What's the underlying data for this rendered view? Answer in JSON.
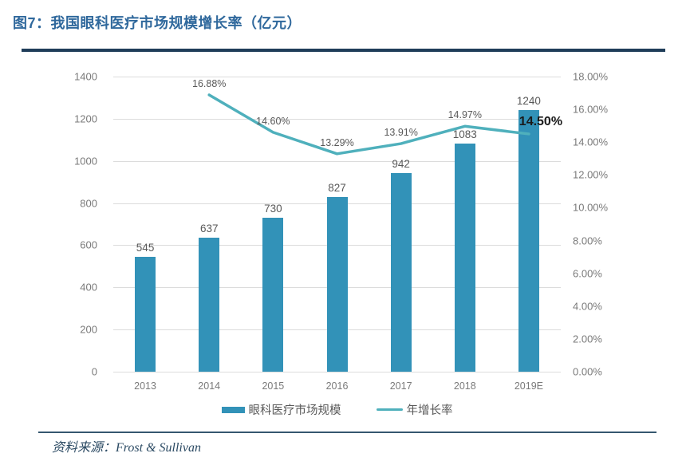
{
  "header": {
    "title": "图7：我国眼科医疗市场规模增长率（亿元）"
  },
  "footer": {
    "source_label": "资料来源：",
    "source_value": "Frost & Sullivan"
  },
  "colors": {
    "title_text": "#2F689C",
    "top_rule": "#1F3D59",
    "bottom_rule": "#35576F",
    "bar": "#3292B8",
    "line": "#4FB0BC",
    "gridline": "#DCDCDC",
    "axis_text": "#7A7A7A",
    "data_label": "#595959",
    "emphasis_label": "#1A1A1A",
    "source_text": "#2B4A63"
  },
  "chart_data": {
    "type": "combo-bar-line",
    "title": "图7：我国眼科医疗市场规模增长率（亿元）",
    "categories": [
      "2013",
      "2014",
      "2015",
      "2016",
      "2017",
      "2018",
      "2019E"
    ],
    "series": [
      {
        "name": "眼科医疗市场规模",
        "type": "bar",
        "axis": "left",
        "values": [
          545,
          637,
          730,
          827,
          942,
          1083,
          1240
        ],
        "value_labels": [
          "545",
          "637",
          "730",
          "827",
          "942",
          "1083",
          "1240"
        ],
        "color": "#3292B8"
      },
      {
        "name": "年增长率",
        "type": "line",
        "axis": "right",
        "start_category_index": 1,
        "values": [
          16.88,
          14.6,
          13.29,
          13.91,
          14.97,
          14.5
        ],
        "value_labels": [
          "16.88%",
          "14.60%",
          "13.29%",
          "13.91%",
          "14.97%",
          "14.50%"
        ],
        "emphasized_label_index": 5,
        "color": "#4FB0BC"
      }
    ],
    "left_axis": {
      "min": 0,
      "max": 1400,
      "step": 200,
      "ticks": [
        "1400",
        "1200",
        "1000",
        "800",
        "600",
        "400",
        "200",
        "0"
      ]
    },
    "right_axis": {
      "min": 0,
      "max": 18,
      "step": 2,
      "ticks": [
        "18.00%",
        "16.00%",
        "14.00%",
        "12.00%",
        "10.00%",
        "8.00%",
        "6.00%",
        "4.00%",
        "2.00%",
        "0.00%"
      ]
    },
    "grid": true,
    "legend_position": "bottom",
    "legend": [
      {
        "label": "眼科医疗市场规模",
        "marker": "bar"
      },
      {
        "label": "年增长率",
        "marker": "line"
      }
    ]
  }
}
